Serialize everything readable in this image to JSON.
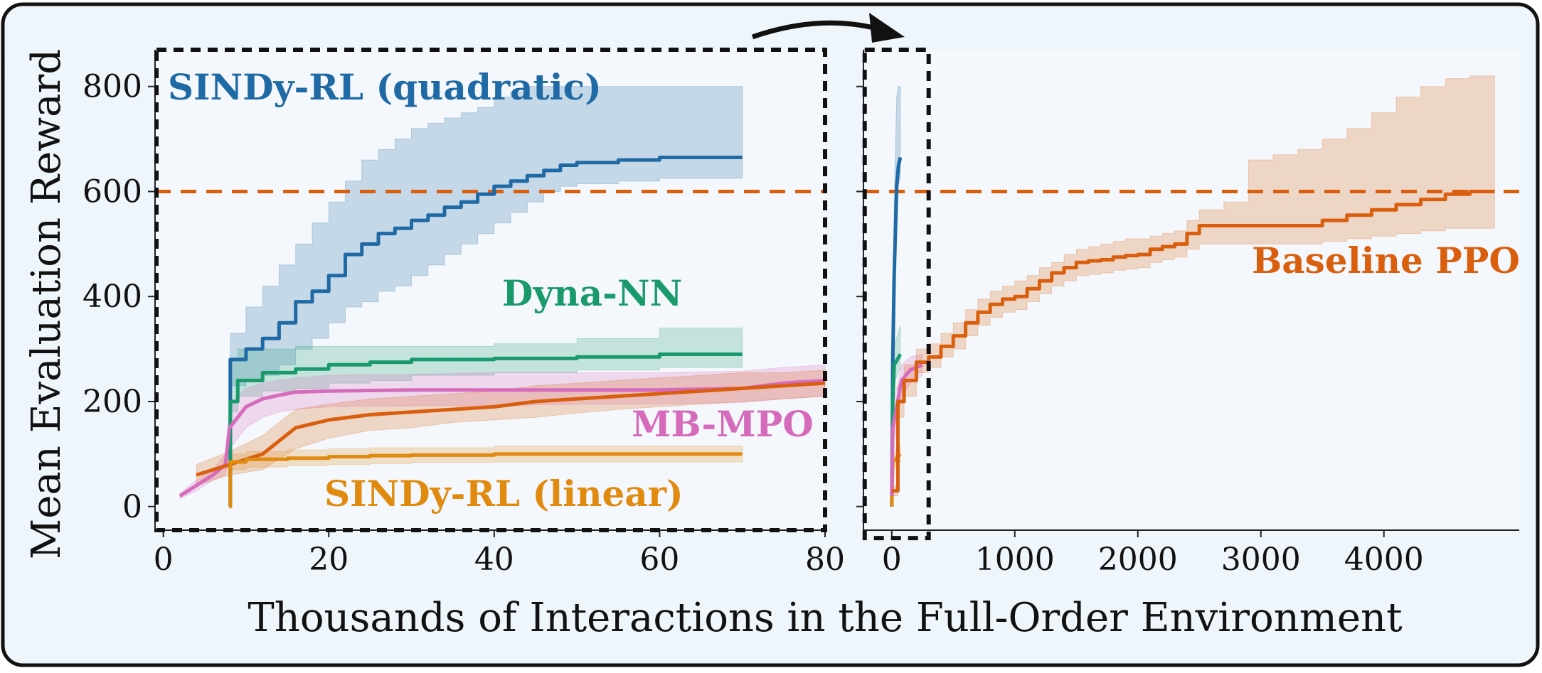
{
  "chart_data": [
    {
      "type": "line",
      "panel": "left",
      "title": "",
      "xlabel": "Thousands of Interactions in the Full-Order Environment",
      "ylabel": "Mean Evaluation Reward",
      "xlim": [
        -1,
        80
      ],
      "ylim": [
        -45,
        870
      ],
      "xticks": [
        0,
        20,
        40,
        60,
        80
      ],
      "yticks": [
        0,
        200,
        400,
        600,
        800
      ],
      "xtick_labels": [
        "0",
        "20",
        "40",
        "60",
        "80"
      ],
      "ytick_labels": [
        "0",
        "200",
        "400",
        "600",
        "800"
      ],
      "grid": false,
      "reference_lines": [
        {
          "name": "Baseline PPO final reward",
          "y": 600,
          "color": "#d95f0e",
          "style": "dashed"
        }
      ],
      "series": [
        {
          "name": "SINDy-RL (quadratic)",
          "color": "#1f6aa5",
          "step": true,
          "x": [
            8,
            8.1,
            10,
            12,
            14,
            16,
            18,
            20,
            22,
            24,
            26,
            28,
            30,
            32,
            34,
            36,
            38,
            40,
            42,
            44,
            46,
            48,
            50,
            55,
            60,
            65,
            70
          ],
          "y": [
            0,
            280,
            300,
            320,
            350,
            390,
            410,
            440,
            480,
            500,
            520,
            530,
            545,
            555,
            570,
            580,
            595,
            610,
            620,
            630,
            640,
            650,
            655,
            660,
            665,
            665,
            665
          ],
          "band_upper": [
            0,
            330,
            380,
            420,
            460,
            500,
            540,
            580,
            620,
            660,
            680,
            700,
            720,
            730,
            740,
            750,
            760,
            780,
            790,
            800,
            800,
            800,
            800,
            800,
            800,
            800,
            800
          ],
          "band_lower": [
            0,
            230,
            240,
            250,
            270,
            300,
            320,
            350,
            380,
            390,
            410,
            420,
            440,
            460,
            480,
            500,
            520,
            540,
            560,
            580,
            600,
            610,
            615,
            620,
            625,
            625,
            625
          ]
        },
        {
          "name": "Dyna-NN",
          "color": "#1a9a6c",
          "step": true,
          "x": [
            8,
            8.1,
            9,
            12,
            16,
            20,
            25,
            30,
            40,
            50,
            60,
            70
          ],
          "y": [
            0,
            200,
            240,
            255,
            262,
            270,
            275,
            280,
            282,
            285,
            290,
            290
          ],
          "band_upper": [
            0,
            280,
            300,
            300,
            305,
            305,
            305,
            305,
            310,
            320,
            340,
            345
          ],
          "band_lower": [
            0,
            180,
            210,
            220,
            225,
            235,
            240,
            250,
            255,
            260,
            265,
            265
          ]
        },
        {
          "name": "MB-MPO",
          "color": "#d66bbb",
          "step": false,
          "x": [
            2,
            4,
            6,
            7.5,
            8,
            9,
            10,
            12,
            14,
            16,
            20,
            30,
            40,
            50,
            60,
            70,
            75,
            80
          ],
          "y": [
            20,
            40,
            60,
            80,
            150,
            170,
            190,
            205,
            212,
            218,
            220,
            222,
            222,
            222,
            222,
            225,
            235,
            240
          ],
          "band_upper": [
            25,
            50,
            70,
            100,
            190,
            210,
            225,
            235,
            240,
            245,
            250,
            252,
            255,
            255,
            255,
            258,
            265,
            270
          ],
          "band_lower": [
            15,
            30,
            50,
            60,
            110,
            130,
            150,
            170,
            180,
            185,
            190,
            192,
            192,
            195,
            195,
            198,
            205,
            210
          ]
        },
        {
          "name": "Baseline PPO",
          "color": "#d95f0e",
          "step": false,
          "x": [
            4,
            8,
            12,
            14,
            16,
            20,
            25,
            30,
            35,
            40,
            45,
            50,
            55,
            60,
            65,
            70,
            75,
            80
          ],
          "y": [
            60,
            80,
            100,
            125,
            150,
            165,
            175,
            180,
            185,
            190,
            200,
            205,
            210,
            215,
            220,
            225,
            230,
            235
          ],
          "band_upper": [
            80,
            105,
            135,
            160,
            185,
            195,
            205,
            210,
            215,
            220,
            230,
            235,
            240,
            245,
            250,
            255,
            255,
            260
          ],
          "band_lower": [
            40,
            60,
            70,
            90,
            110,
            130,
            145,
            150,
            160,
            165,
            170,
            178,
            185,
            190,
            195,
            200,
            205,
            210
          ]
        },
        {
          "name": "SINDy-RL (linear)",
          "color": "#e08a10",
          "step": true,
          "x": [
            8,
            8.1,
            10,
            15,
            20,
            25,
            30,
            40,
            50,
            60,
            70
          ],
          "y": [
            0,
            85,
            90,
            92,
            95,
            97,
            98,
            100,
            100,
            100,
            100
          ],
          "band_upper": [
            0,
            100,
            105,
            108,
            110,
            112,
            112,
            115,
            115,
            115,
            115
          ],
          "band_lower": [
            0,
            70,
            75,
            78,
            80,
            82,
            84,
            85,
            85,
            85,
            85
          ]
        }
      ],
      "annotations": [
        {
          "text": "SINDy-RL (quadratic)",
          "series": "SINDy-RL (quadratic)"
        },
        {
          "text": "Dyna-NN",
          "series": "Dyna-NN"
        },
        {
          "text": "MB-MPO",
          "series": "MB-MPO"
        },
        {
          "text": "SINDy-RL (linear)",
          "series": "SINDy-RL (linear)"
        }
      ]
    },
    {
      "type": "line",
      "panel": "right",
      "title": "",
      "xlabel": "Thousands of Interactions in the Full-Order Environment",
      "ylabel": "",
      "xlim": [
        -230,
        5100
      ],
      "ylim": [
        -45,
        870
      ],
      "xticks": [
        0,
        1000,
        2000,
        3000,
        4000
      ],
      "xtick_labels": [
        "0",
        "1000",
        "2000",
        "3000",
        "4000"
      ],
      "grid": false,
      "zoom_box": {
        "x": [
          -220,
          300
        ],
        "y": [
          -60,
          870
        ],
        "links_to": "left"
      },
      "reference_lines": [
        {
          "name": "Baseline PPO final reward",
          "y": 600,
          "color": "#d95f0e",
          "style": "dashed"
        }
      ],
      "series": [
        {
          "name": "SINDy-RL (quadratic)",
          "color": "#1f6aa5",
          "step": false,
          "x": [
            0,
            8,
            20,
            40,
            55,
            70
          ],
          "y": [
            0,
            280,
            440,
            610,
            650,
            665
          ],
          "band_upper": [
            0,
            330,
            580,
            780,
            800,
            800
          ],
          "band_lower": [
            0,
            230,
            350,
            540,
            615,
            625
          ]
        },
        {
          "name": "Dyna-NN",
          "color": "#1a9a6c",
          "step": false,
          "x": [
            0,
            8,
            20,
            70
          ],
          "y": [
            0,
            200,
            270,
            290
          ],
          "band_upper": [
            0,
            280,
            305,
            345
          ],
          "band_lower": [
            0,
            180,
            235,
            265
          ]
        },
        {
          "name": "SINDy-RL (linear)",
          "color": "#e08a10",
          "step": false,
          "x": [
            0,
            8,
            70
          ],
          "y": [
            0,
            85,
            100
          ],
          "band_upper": [
            0,
            100,
            115
          ],
          "band_lower": [
            0,
            70,
            85
          ]
        },
        {
          "name": "MB-MPO",
          "color": "#d66bbb",
          "step": false,
          "x": [
            0,
            8,
            80,
            150,
            250
          ],
          "y": [
            20,
            150,
            240,
            260,
            270
          ],
          "band_upper": [
            25,
            190,
            270,
            285,
            290
          ],
          "band_lower": [
            15,
            110,
            210,
            235,
            250
          ]
        },
        {
          "name": "Baseline PPO",
          "color": "#d95f0e",
          "step": true,
          "x": [
            0,
            50,
            100,
            200,
            300,
            400,
            500,
            600,
            700,
            800,
            900,
            1000,
            1100,
            1200,
            1300,
            1400,
            1500,
            1600,
            1700,
            1800,
            1900,
            2000,
            2100,
            2200,
            2300,
            2400,
            2500,
            2700,
            2900,
            3100,
            3300,
            3500,
            3700,
            3900,
            4100,
            4300,
            4500,
            4700,
            4900
          ],
          "y": [
            30,
            200,
            240,
            275,
            285,
            305,
            325,
            350,
            370,
            385,
            395,
            400,
            415,
            430,
            445,
            455,
            465,
            468,
            470,
            475,
            478,
            480,
            490,
            495,
            500,
            520,
            535,
            535,
            535,
            535,
            535,
            545,
            555,
            565,
            575,
            585,
            595,
            600,
            600
          ],
          "band_upper": [
            40,
            230,
            270,
            300,
            310,
            330,
            350,
            375,
            395,
            410,
            420,
            430,
            440,
            455,
            465,
            480,
            490,
            495,
            500,
            505,
            510,
            510,
            515,
            520,
            525,
            545,
            565,
            580,
            660,
            670,
            680,
            700,
            720,
            750,
            780,
            800,
            815,
            820,
            820
          ],
          "band_lower": [
            20,
            170,
            210,
            255,
            265,
            285,
            300,
            325,
            345,
            360,
            370,
            375,
            390,
            405,
            420,
            430,
            440,
            442,
            445,
            450,
            452,
            455,
            465,
            470,
            475,
            490,
            500,
            500,
            500,
            500,
            500,
            505,
            510,
            515,
            520,
            525,
            530,
            530,
            530
          ]
        }
      ],
      "annotations": [
        {
          "text": "Baseline PPO",
          "series": "Baseline PPO"
        }
      ]
    }
  ]
}
